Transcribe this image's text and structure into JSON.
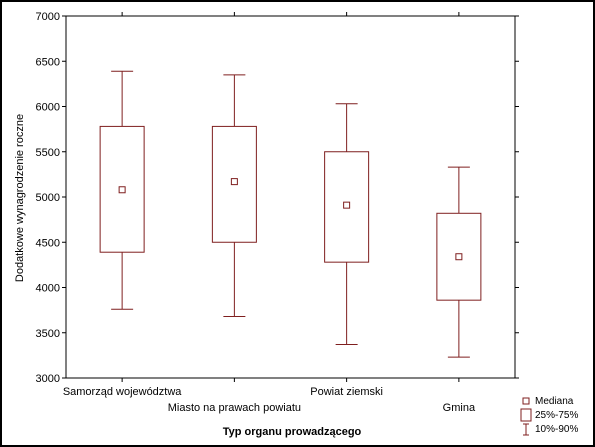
{
  "chart_data": {
    "type": "boxplot",
    "title": "",
    "xlabel": "Typ organu prowadzącego",
    "ylabel": "Dodatkowe wynagrodzenie roczne",
    "ylim": [
      3000,
      7000
    ],
    "yticks": [
      3000,
      3500,
      4000,
      4500,
      5000,
      5500,
      6000,
      6500,
      7000
    ],
    "grid": false,
    "legend_position": "bottom-right",
    "colors": {
      "box": "#7f1f1f",
      "axis": "#000000"
    },
    "categories": [
      "Samorząd województwa",
      "Miasto na prawach powiatu",
      "Powiat ziemski",
      "Gmina"
    ],
    "series": [
      {
        "category": "Samorząd województwa",
        "median": 5080,
        "q1": 4390,
        "q3": 5780,
        "p10": 3760,
        "p90": 6390
      },
      {
        "category": "Miasto na prawach powiatu",
        "median": 5170,
        "q1": 4500,
        "q3": 5780,
        "p10": 3680,
        "p90": 6350
      },
      {
        "category": "Powiat ziemski",
        "median": 4910,
        "q1": 4280,
        "q3": 5500,
        "p10": 3370,
        "p90": 6030
      },
      {
        "category": "Gmina",
        "median": 4340,
        "q1": 3860,
        "q3": 4820,
        "p10": 3230,
        "p90": 5330
      }
    ],
    "legend": [
      {
        "symbol": "median",
        "label": "Mediana"
      },
      {
        "symbol": "box",
        "label": "25%-75%"
      },
      {
        "symbol": "whisker",
        "label": "10%-90%"
      }
    ]
  }
}
